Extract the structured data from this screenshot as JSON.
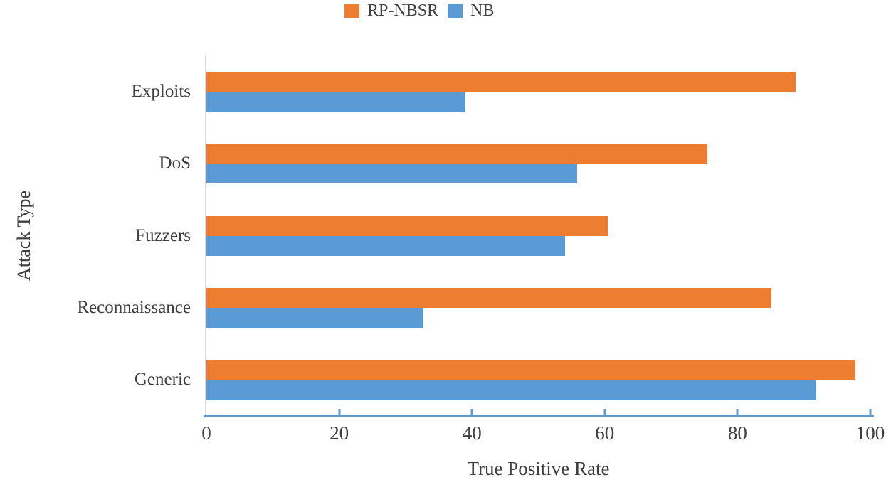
{
  "chart_data": {
    "type": "bar",
    "orientation": "horizontal",
    "title": "",
    "xlabel": "True Positive Rate",
    "ylabel": "Attack Type",
    "categories": [
      "Exploits",
      "DoS",
      "Fuzzers",
      "Reconnaissance",
      "Generic"
    ],
    "series": [
      {
        "name": "RP-NBSR",
        "color": "#ED7D31",
        "values": [
          88.7,
          75.5,
          60.5,
          85.1,
          97.8
        ]
      },
      {
        "name": "NB",
        "color": "#5B9BD5",
        "values": [
          39.0,
          55.8,
          54.0,
          32.7,
          91.9
        ]
      }
    ],
    "xlim": [
      0,
      100
    ],
    "x_ticks": [
      0,
      20,
      40,
      60,
      80,
      100
    ],
    "grid": false,
    "legend_position": "top-center",
    "axis_line_color": "#5B9BD5",
    "baseline_color": "#D8D8D8",
    "text_color": "#3E3E3E",
    "background": "#FFFFFF"
  }
}
